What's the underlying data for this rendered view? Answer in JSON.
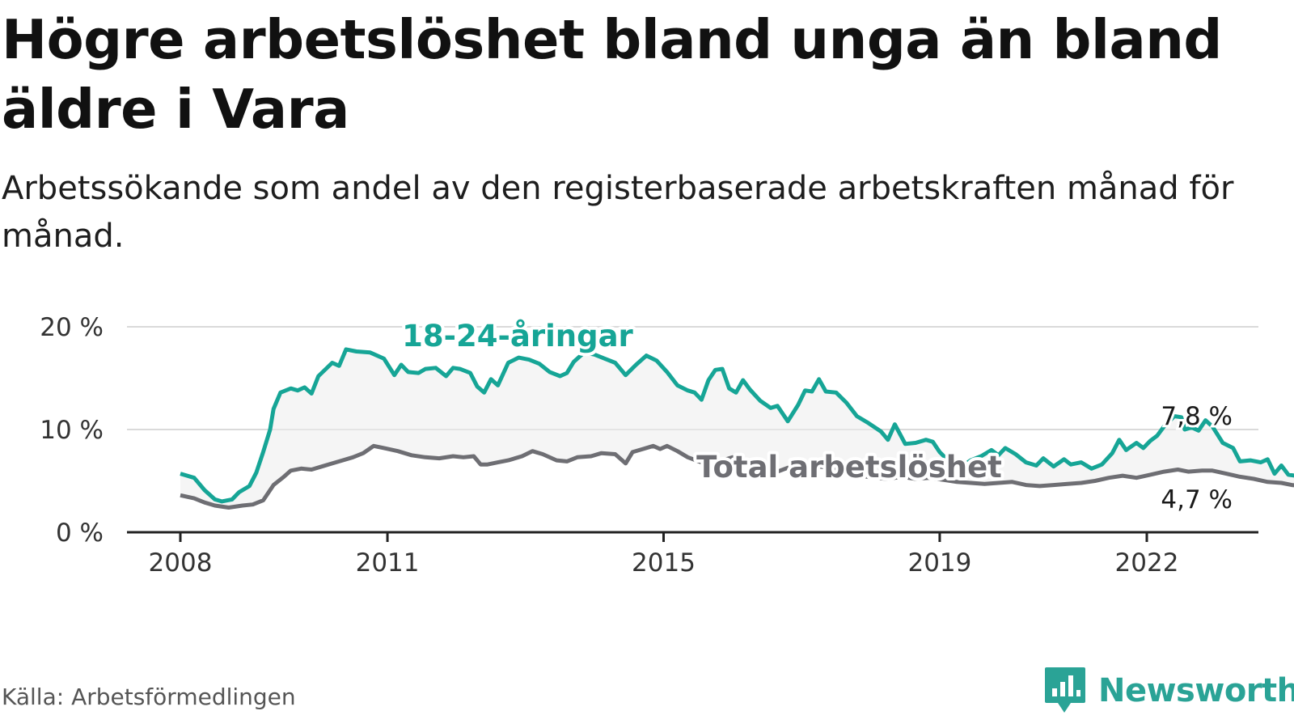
{
  "title": "Högre arbetslöshet bland unga än bland äldre i Vara",
  "subtitle": "Arbetssökande som andel av den registerbaserade arbetskraften månad för månad.",
  "source": "Källa: Arbetsförmedlingen",
  "brand": {
    "name": "Newsworthy",
    "icon": "newsworthy-logo-icon"
  },
  "colors": {
    "youth": "#16a596",
    "total": "#6e6e73",
    "band": "#ececec",
    "grid": "#dadada",
    "axis": "#222222"
  },
  "chart_data": {
    "type": "line",
    "y_ticks": [
      {
        "value": 0,
        "label": "0 %"
      },
      {
        "value": 10,
        "label": "10 %"
      },
      {
        "value": 20,
        "label": "20 %"
      }
    ],
    "ylim": [
      0,
      20
    ],
    "xlim": [
      2008.0,
      2023.0
    ],
    "x_ticks": [
      {
        "value": 2008.0,
        "label": "2008"
      },
      {
        "value": 2011.0,
        "label": "2011"
      },
      {
        "value": 2015.0,
        "label": "2015"
      },
      {
        "value": 2019.0,
        "label": "2019"
      },
      {
        "value": 2022.0,
        "label": "2022"
      }
    ],
    "series": [
      {
        "name": "18-24-åringar",
        "label": "18-24-åringar",
        "end_label": "7,8 %",
        "points": [
          [
            2008.0,
            5.7
          ],
          [
            2008.2,
            5.3
          ],
          [
            2008.35,
            4.1
          ],
          [
            2008.5,
            3.2
          ],
          [
            2008.6,
            3.0
          ],
          [
            2008.75,
            3.2
          ],
          [
            2008.85,
            3.9
          ],
          [
            2009.0,
            4.5
          ],
          [
            2009.1,
            5.8
          ],
          [
            2009.2,
            7.8
          ],
          [
            2009.3,
            10.0
          ],
          [
            2009.35,
            12.0
          ],
          [
            2009.45,
            13.6
          ],
          [
            2009.6,
            14.0
          ],
          [
            2009.7,
            13.8
          ],
          [
            2009.8,
            14.1
          ],
          [
            2009.9,
            13.5
          ],
          [
            2010.0,
            15.2
          ],
          [
            2010.2,
            16.5
          ],
          [
            2010.3,
            16.2
          ],
          [
            2010.4,
            17.8
          ],
          [
            2010.55,
            17.6
          ],
          [
            2010.75,
            17.5
          ],
          [
            2010.95,
            16.9
          ],
          [
            2011.1,
            15.3
          ],
          [
            2011.2,
            16.3
          ],
          [
            2011.3,
            15.6
          ],
          [
            2011.45,
            15.5
          ],
          [
            2011.55,
            15.9
          ],
          [
            2011.7,
            16.0
          ],
          [
            2011.85,
            15.2
          ],
          [
            2011.95,
            16.0
          ],
          [
            2012.05,
            15.9
          ],
          [
            2012.2,
            15.5
          ],
          [
            2012.3,
            14.2
          ],
          [
            2012.4,
            13.6
          ],
          [
            2012.5,
            14.9
          ],
          [
            2012.6,
            14.3
          ],
          [
            2012.75,
            16.5
          ],
          [
            2012.9,
            17.0
          ],
          [
            2013.05,
            16.8
          ],
          [
            2013.2,
            16.4
          ],
          [
            2013.35,
            15.6
          ],
          [
            2013.5,
            15.2
          ],
          [
            2013.6,
            15.5
          ],
          [
            2013.7,
            16.6
          ],
          [
            2013.85,
            17.5
          ],
          [
            2014.0,
            17.3
          ],
          [
            2014.15,
            16.9
          ],
          [
            2014.3,
            16.5
          ],
          [
            2014.45,
            15.3
          ],
          [
            2014.6,
            16.3
          ],
          [
            2014.75,
            17.2
          ],
          [
            2014.9,
            16.7
          ],
          [
            2015.05,
            15.6
          ],
          [
            2015.2,
            14.3
          ],
          [
            2015.35,
            13.8
          ],
          [
            2015.45,
            13.6
          ],
          [
            2015.55,
            12.9
          ],
          [
            2015.65,
            14.8
          ],
          [
            2015.75,
            15.8
          ],
          [
            2015.85,
            15.9
          ],
          [
            2015.95,
            14.0
          ],
          [
            2016.05,
            13.6
          ],
          [
            2016.15,
            14.8
          ],
          [
            2016.25,
            13.9
          ],
          [
            2016.4,
            12.8
          ],
          [
            2016.55,
            12.1
          ],
          [
            2016.65,
            12.3
          ],
          [
            2016.8,
            10.8
          ],
          [
            2016.95,
            12.4
          ],
          [
            2017.05,
            13.8
          ],
          [
            2017.15,
            13.7
          ],
          [
            2017.25,
            14.9
          ],
          [
            2017.35,
            13.7
          ],
          [
            2017.5,
            13.6
          ],
          [
            2017.65,
            12.6
          ],
          [
            2017.8,
            11.3
          ],
          [
            2017.95,
            10.7
          ],
          [
            2018.15,
            9.8
          ],
          [
            2018.25,
            9.0
          ],
          [
            2018.35,
            10.5
          ],
          [
            2018.5,
            8.6
          ],
          [
            2018.65,
            8.7
          ],
          [
            2018.8,
            9.0
          ],
          [
            2018.9,
            8.8
          ],
          [
            2019.0,
            7.8
          ],
          [
            2019.15,
            6.8
          ],
          [
            2019.3,
            6.3
          ],
          [
            2019.45,
            7.0
          ],
          [
            2019.6,
            7.4
          ],
          [
            2019.75,
            8.0
          ],
          [
            2019.85,
            7.5
          ],
          [
            2019.95,
            8.2
          ],
          [
            2020.1,
            7.6
          ],
          [
            2020.25,
            6.8
          ],
          [
            2020.4,
            6.5
          ],
          [
            2020.5,
            7.2
          ],
          [
            2020.65,
            6.4
          ],
          [
            2020.8,
            7.1
          ],
          [
            2020.9,
            6.6
          ],
          [
            2021.05,
            6.8
          ],
          [
            2021.2,
            6.2
          ],
          [
            2021.35,
            6.6
          ],
          [
            2021.5,
            7.7
          ],
          [
            2021.6,
            9.0
          ],
          [
            2021.7,
            8.0
          ],
          [
            2021.85,
            8.7
          ],
          [
            2021.95,
            8.2
          ],
          [
            2022.05,
            8.9
          ],
          [
            2022.15,
            9.4
          ],
          [
            2022.25,
            10.3
          ],
          [
            2022.4,
            11.3
          ],
          [
            2022.5,
            11.2
          ],
          [
            2022.55,
            10.0
          ],
          [
            2022.65,
            10.2
          ],
          [
            2022.75,
            9.9
          ],
          [
            2022.85,
            10.9
          ],
          [
            2022.95,
            10.3
          ],
          [
            2023.1,
            8.7
          ],
          [
            2023.25,
            8.2
          ],
          [
            2023.35,
            6.9
          ],
          [
            2023.5,
            7.0
          ],
          [
            2023.65,
            6.8
          ],
          [
            2023.75,
            7.1
          ],
          [
            2023.85,
            5.7
          ],
          [
            2023.95,
            6.5
          ],
          [
            2024.05,
            5.6
          ],
          [
            2024.15,
            5.5
          ],
          [
            2024.25,
            7.0
          ],
          [
            2024.35,
            6.6
          ],
          [
            2024.45,
            7.5
          ],
          [
            2024.55,
            6.8
          ],
          [
            2024.65,
            7.1
          ],
          [
            2024.75,
            7.8
          ],
          [
            2024.9,
            7.8
          ]
        ]
      },
      {
        "name": "Total arbetslöshet",
        "label": "Total arbetslöshet",
        "end_label": "4,7 %",
        "points": [
          [
            2008.0,
            3.6
          ],
          [
            2008.2,
            3.3
          ],
          [
            2008.35,
            2.9
          ],
          [
            2008.5,
            2.6
          ],
          [
            2008.7,
            2.4
          ],
          [
            2008.9,
            2.6
          ],
          [
            2009.05,
            2.7
          ],
          [
            2009.2,
            3.1
          ],
          [
            2009.35,
            4.6
          ],
          [
            2009.5,
            5.4
          ],
          [
            2009.6,
            6.0
          ],
          [
            2009.75,
            6.2
          ],
          [
            2009.9,
            6.1
          ],
          [
            2010.05,
            6.4
          ],
          [
            2010.2,
            6.7
          ],
          [
            2010.35,
            7.0
          ],
          [
            2010.5,
            7.3
          ],
          [
            2010.65,
            7.7
          ],
          [
            2010.8,
            8.4
          ],
          [
            2010.95,
            8.2
          ],
          [
            2011.15,
            7.9
          ],
          [
            2011.35,
            7.5
          ],
          [
            2011.55,
            7.3
          ],
          [
            2011.75,
            7.2
          ],
          [
            2011.95,
            7.4
          ],
          [
            2012.1,
            7.3
          ],
          [
            2012.25,
            7.4
          ],
          [
            2012.35,
            6.6
          ],
          [
            2012.45,
            6.6
          ],
          [
            2012.6,
            6.8
          ],
          [
            2012.75,
            7.0
          ],
          [
            2012.95,
            7.4
          ],
          [
            2013.1,
            7.9
          ],
          [
            2013.25,
            7.6
          ],
          [
            2013.45,
            7.0
          ],
          [
            2013.6,
            6.9
          ],
          [
            2013.75,
            7.3
          ],
          [
            2013.95,
            7.4
          ],
          [
            2014.1,
            7.7
          ],
          [
            2014.3,
            7.6
          ],
          [
            2014.45,
            6.7
          ],
          [
            2014.55,
            7.8
          ],
          [
            2014.7,
            8.1
          ],
          [
            2014.85,
            8.4
          ],
          [
            2014.95,
            8.1
          ],
          [
            2015.05,
            8.4
          ],
          [
            2015.2,
            7.9
          ],
          [
            2015.35,
            7.3
          ],
          [
            2015.55,
            6.8
          ],
          [
            2015.7,
            7.3
          ],
          [
            2015.85,
            7.0
          ],
          [
            2016.0,
            7.3
          ],
          [
            2016.1,
            7.2
          ],
          [
            2016.25,
            6.5
          ],
          [
            2016.4,
            6.0
          ],
          [
            2016.5,
            5.5
          ],
          [
            2016.65,
            5.9
          ],
          [
            2016.85,
            6.4
          ],
          [
            2017.05,
            6.3
          ],
          [
            2017.25,
            6.4
          ],
          [
            2017.45,
            6.2
          ],
          [
            2017.65,
            5.9
          ],
          [
            2017.85,
            5.5
          ],
          [
            2018.05,
            5.3
          ],
          [
            2018.25,
            5.2
          ],
          [
            2018.45,
            5.4
          ],
          [
            2018.65,
            5.2
          ],
          [
            2018.85,
            5.3
          ],
          [
            2019.05,
            5.1
          ],
          [
            2019.25,
            4.9
          ],
          [
            2019.45,
            4.8
          ],
          [
            2019.65,
            4.7
          ],
          [
            2019.85,
            4.8
          ],
          [
            2020.05,
            4.9
          ],
          [
            2020.25,
            4.6
          ],
          [
            2020.45,
            4.5
          ],
          [
            2020.65,
            4.6
          ],
          [
            2020.85,
            4.7
          ],
          [
            2021.05,
            4.8
          ],
          [
            2021.25,
            5.0
          ],
          [
            2021.45,
            5.3
          ],
          [
            2021.65,
            5.5
          ],
          [
            2021.85,
            5.3
          ],
          [
            2022.05,
            5.6
          ],
          [
            2022.25,
            5.9
          ],
          [
            2022.45,
            6.1
          ],
          [
            2022.6,
            5.9
          ],
          [
            2022.8,
            6.0
          ],
          [
            2022.95,
            6.0
          ],
          [
            2023.15,
            5.7
          ],
          [
            2023.35,
            5.4
          ],
          [
            2023.55,
            5.2
          ],
          [
            2023.75,
            4.9
          ],
          [
            2023.95,
            4.8
          ],
          [
            2024.1,
            4.6
          ],
          [
            2024.25,
            4.5
          ],
          [
            2024.45,
            4.7
          ],
          [
            2024.6,
            4.6
          ],
          [
            2024.75,
            4.6
          ],
          [
            2024.9,
            4.7
          ]
        ]
      }
    ]
  }
}
